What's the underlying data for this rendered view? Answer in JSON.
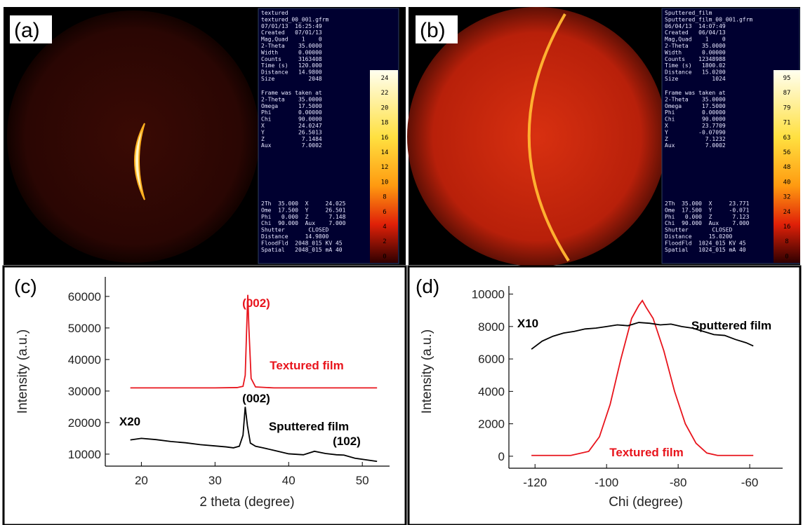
{
  "panels": [
    {
      "label": "(a)",
      "header": [
        "textured",
        "textured_00_001.gfrm",
        "07/01/13  16:25:49",
        "Created   07/01/13",
        "Mag,Quad    1    0",
        "2-Theta    35.0000",
        "Width      0.00000",
        "Counts     3163408",
        "Time (s)   120.000",
        "Distance   14.9800",
        "Size          2048"
      ],
      "frame": [
        "Frame was taken at",
        "2-Theta    35.0000",
        "Omega      17.5000",
        "Phi        0.00000",
        "Chi        90.0000",
        "X          24.0247",
        "Y          26.5013",
        "Z           7.1484",
        "Aux         7.0002"
      ],
      "status": [
        "2Th  35.000  X     24.025",
        "Ome  17.500  Y     26.501",
        "Phi   0.000  Z      7.148",
        "Chi  90.000  Aux    7.000",
        "Shutter       CLOSED",
        "Distance     14.9800",
        "FloodFld  2048_015 KV 45",
        "Spatial   2048_015 mA 40"
      ],
      "colorbar": [
        24,
        22,
        20,
        18,
        16,
        14,
        12,
        10,
        8,
        6,
        4,
        2,
        0
      ]
    },
    {
      "label": "(b)",
      "header": [
        "Sputtered_film",
        "Sputtered_film_00_001.gfrm",
        "06/04/13  14:07:49",
        "Created   06/04/13",
        "Mag,Quad    1    0",
        "2-Theta    35.0000",
        "Width      0.00000",
        "Counts    12348988",
        "Time (s)   1800.02",
        "Distance   15.0200",
        "Size          1024"
      ],
      "frame": [
        "Frame was taken at",
        "2-Theta    35.0000",
        "Omega      17.5000",
        "Phi        0.00000",
        "Chi        90.0000",
        "X          23.7709",
        "Y         -0.07090",
        "Z           7.1232",
        "Aux         7.0002"
      ],
      "status": [
        "2Th  35.000  X     23.771",
        "Ome  17.500  Y     -0.071",
        "Phi   0.000  Z      7.123",
        "Chi  90.000  Aux    7.000",
        "Shutter       CLOSED",
        "Distance     15.0200",
        "FloodFld  1024_015 KV 45",
        "Spatial   1024_015 mA 40"
      ],
      "colorbar": [
        95,
        87,
        79,
        71,
        63,
        56,
        48,
        40,
        32,
        24,
        16,
        8,
        0
      ]
    }
  ],
  "chart_data": [
    {
      "type": "line",
      "label": "(c)",
      "x_label": "2 theta (degree)",
      "y_label": "Intensity (a.u.)",
      "xlim": [
        15.1,
        53.7
      ],
      "ylim": [
        6200,
        66200
      ],
      "xticks": [
        20,
        30,
        40,
        50
      ],
      "yticks": [
        10000,
        20000,
        30000,
        40000,
        50000,
        60000
      ],
      "annotations": [
        "(002)",
        "Textured film",
        "(002)",
        "X20",
        "Sputtered film",
        "(102)"
      ],
      "series": [
        {
          "name": "Textured film",
          "color": "#e8141c",
          "x": [
            18.5,
            30,
            33,
            33.8,
            34.1,
            34.3,
            34.45,
            34.6,
            34.9,
            35.5,
            38,
            52
          ],
          "values": [
            31000,
            31000,
            31100,
            31500,
            35000,
            50000,
            60500,
            50000,
            34000,
            31300,
            31000,
            31000
          ]
        },
        {
          "name": "Sputtered film",
          "color": "#000000",
          "x": [
            18.5,
            20,
            22,
            24,
            26,
            28,
            30,
            31.5,
            32.5,
            33.3,
            33.8,
            34.1,
            34.4,
            34.8,
            35.5,
            36.5,
            38,
            40,
            42,
            43.5,
            45,
            46.5,
            47.5,
            49,
            50.5,
            52
          ],
          "values": [
            14500,
            15000,
            14600,
            14000,
            13600,
            13000,
            12600,
            12300,
            12000,
            12500,
            16000,
            25000,
            19000,
            13500,
            12500,
            12000,
            11200,
            10100,
            9800,
            10900,
            10200,
            9800,
            9700,
            8700,
            8200,
            7700
          ]
        }
      ]
    },
    {
      "type": "line",
      "label": "(d)",
      "x_label": "Chi (degree)",
      "y_label": "Intensity (a.u.)",
      "xlim": [
        -127.3,
        -50.8
      ],
      "ylim": [
        -740,
        10500
      ],
      "xticks": [
        -120,
        -100,
        -80,
        -60
      ],
      "yticks": [
        0,
        2000,
        4000,
        6000,
        8000,
        10000
      ],
      "annotations": [
        "X10",
        "Sputtered film",
        "Textured film"
      ],
      "series": [
        {
          "name": "Textured film",
          "color": "#e8141c",
          "x": [
            -121,
            -110,
            -105,
            -102,
            -99,
            -96,
            -93,
            -91,
            -90,
            -89,
            -87,
            -84,
            -81,
            -78,
            -75,
            -72,
            -69,
            -65,
            -59
          ],
          "values": [
            50,
            50,
            300,
            1200,
            3200,
            6000,
            8500,
            9300,
            9600,
            9200,
            8500,
            6500,
            4000,
            2000,
            800,
            200,
            50,
            50,
            50
          ]
        },
        {
          "name": "Sputtered film",
          "color": "#000000",
          "x": [
            -121,
            -118,
            -115,
            -112,
            -109,
            -106,
            -103,
            -100,
            -97,
            -94,
            -91,
            -88,
            -85,
            -82,
            -79,
            -76,
            -73,
            -70,
            -67,
            -64,
            -61,
            -59
          ],
          "values": [
            6600,
            7100,
            7400,
            7600,
            7700,
            7850,
            7900,
            8000,
            8100,
            8050,
            8250,
            8200,
            8100,
            8150,
            8000,
            7900,
            7700,
            7500,
            7450,
            7200,
            7000,
            6800
          ]
        }
      ]
    }
  ]
}
